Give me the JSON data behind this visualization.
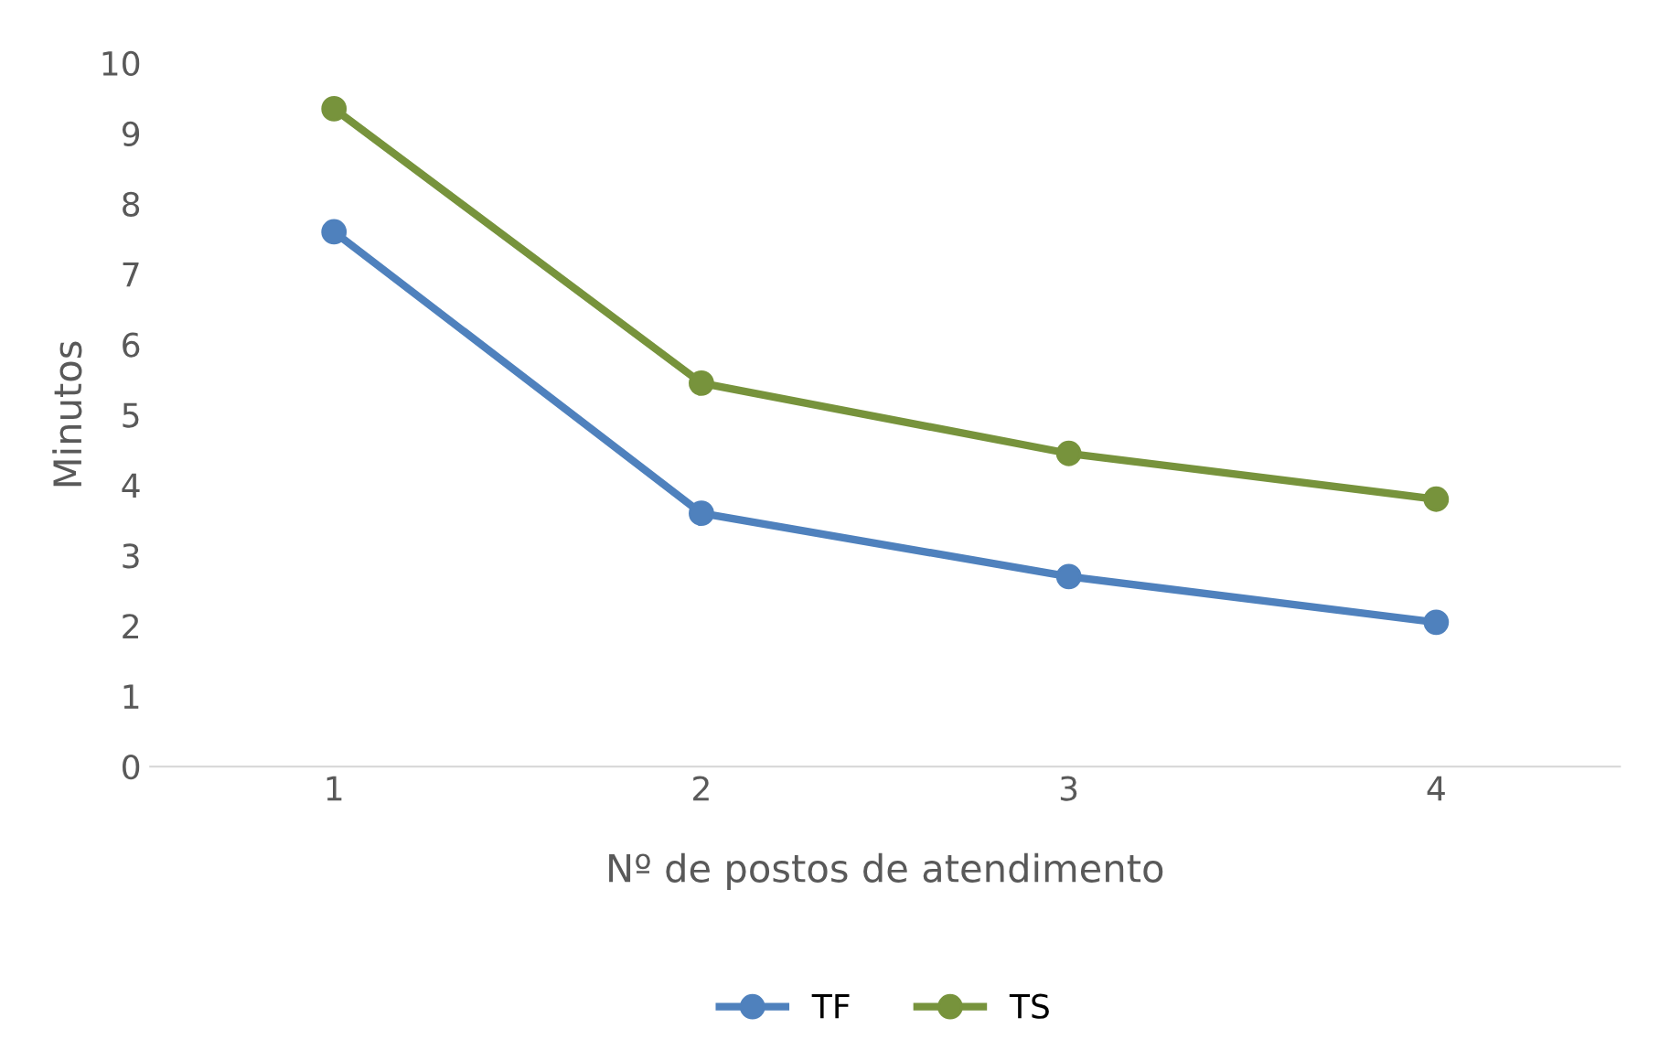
{
  "chart_data": {
    "type": "line",
    "xlabel": "Nº de postos de atendimento",
    "ylabel": "Minutos",
    "categories": [
      "1",
      "2",
      "3",
      "4"
    ],
    "series": [
      {
        "name": "TF",
        "color": "#4f81bd",
        "values": [
          7.6,
          3.6,
          2.7,
          2.05
        ]
      },
      {
        "name": "TS",
        "color": "#77933c",
        "values": [
          9.35,
          5.45,
          4.45,
          3.8
        ]
      }
    ],
    "ylim": [
      0,
      10
    ],
    "yticks": [
      0,
      1,
      2,
      3,
      4,
      5,
      6,
      7,
      8,
      9,
      10
    ],
    "grid": false,
    "legend": "bottom",
    "marker": "circle",
    "line_style": "solid"
  }
}
